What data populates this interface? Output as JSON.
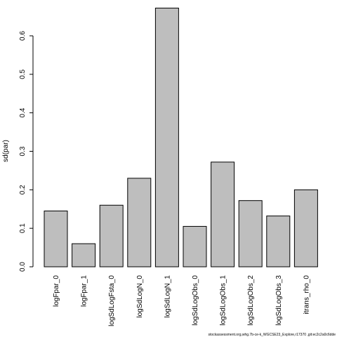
{
  "chart_data": {
    "type": "bar",
    "title": "",
    "xlabel": "",
    "ylabel": "sd(par)",
    "ylim": [
      0,
      0.68
    ],
    "yticks": [
      0.0,
      0.1,
      0.2,
      0.3,
      0.4,
      0.5,
      0.6
    ],
    "ytick_labels": [
      "0.0",
      "0.1",
      "0.2",
      "0.3",
      "0.4",
      "0.5",
      "0.6"
    ],
    "categories": [
      "logFpar_0",
      "logFpar_1",
      "logSdLogFsta_0",
      "logSdLogN_0",
      "logSdLogN_1",
      "logSdLogObs_0",
      "logSdLogObs_1",
      "logSdLogObs_2",
      "logSdLogObs_3",
      "itrans_rho_0"
    ],
    "values": [
      0.145,
      0.06,
      0.16,
      0.23,
      0.672,
      0.105,
      0.272,
      0.172,
      0.132,
      0.2
    ],
    "bar_color": "#bebebe",
    "grid": false,
    "footnote": "stockassessment.org,whg.7b-ce-k_WGCSE23_Explore,r17370 ,git:ec2c2a0c6dde"
  }
}
